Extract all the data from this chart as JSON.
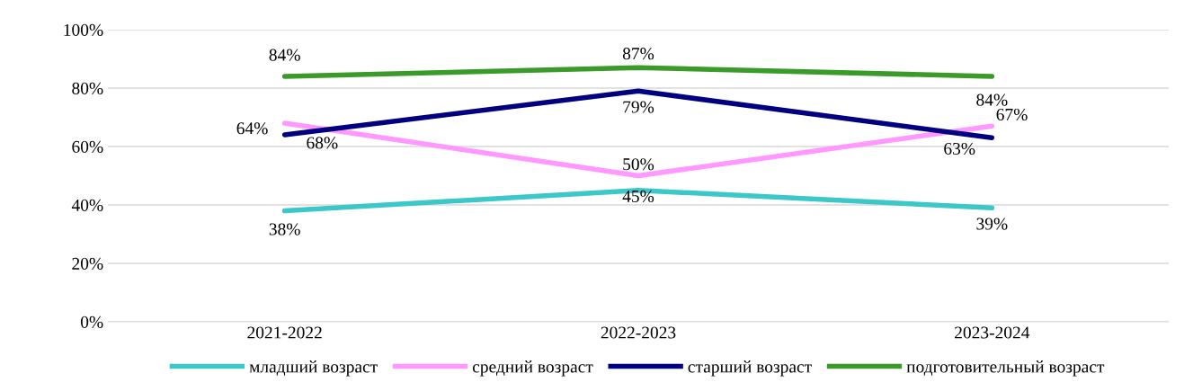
{
  "chart_data": {
    "type": "line",
    "categories": [
      "2021-2022",
      "2022-2023",
      "2023-2024"
    ],
    "series": [
      {
        "name": "младший возраст",
        "color": "#3cc8c8",
        "values": [
          38,
          45,
          39
        ],
        "value_labels": [
          "38%",
          "45%",
          "39%"
        ]
      },
      {
        "name": "средний возраст",
        "color": "#ff99ff",
        "values": [
          68,
          50,
          67
        ],
        "value_labels": [
          "68%",
          "50%",
          "67%"
        ]
      },
      {
        "name": "старший возраст",
        "color": "#000080",
        "values": [
          64,
          79,
          63
        ],
        "value_labels": [
          "64%",
          "79%",
          "63%"
        ]
      },
      {
        "name": "подготовительный возраст",
        "color": "#3a9a2a",
        "values": [
          84,
          87,
          84
        ],
        "value_labels": [
          "84%",
          "87%",
          "84%"
        ]
      }
    ],
    "ylim": [
      0,
      100
    ],
    "yticks": [
      {
        "value": 0,
        "label": "0%"
      },
      {
        "value": 20,
        "label": "20%"
      },
      {
        "value": 40,
        "label": "40%"
      },
      {
        "value": 60,
        "label": "60%"
      },
      {
        "value": 80,
        "label": "80%"
      },
      {
        "value": 100,
        "label": "100%"
      }
    ],
    "grid": "y",
    "legend": "bottom",
    "marker": "none",
    "line_style": "solid"
  }
}
